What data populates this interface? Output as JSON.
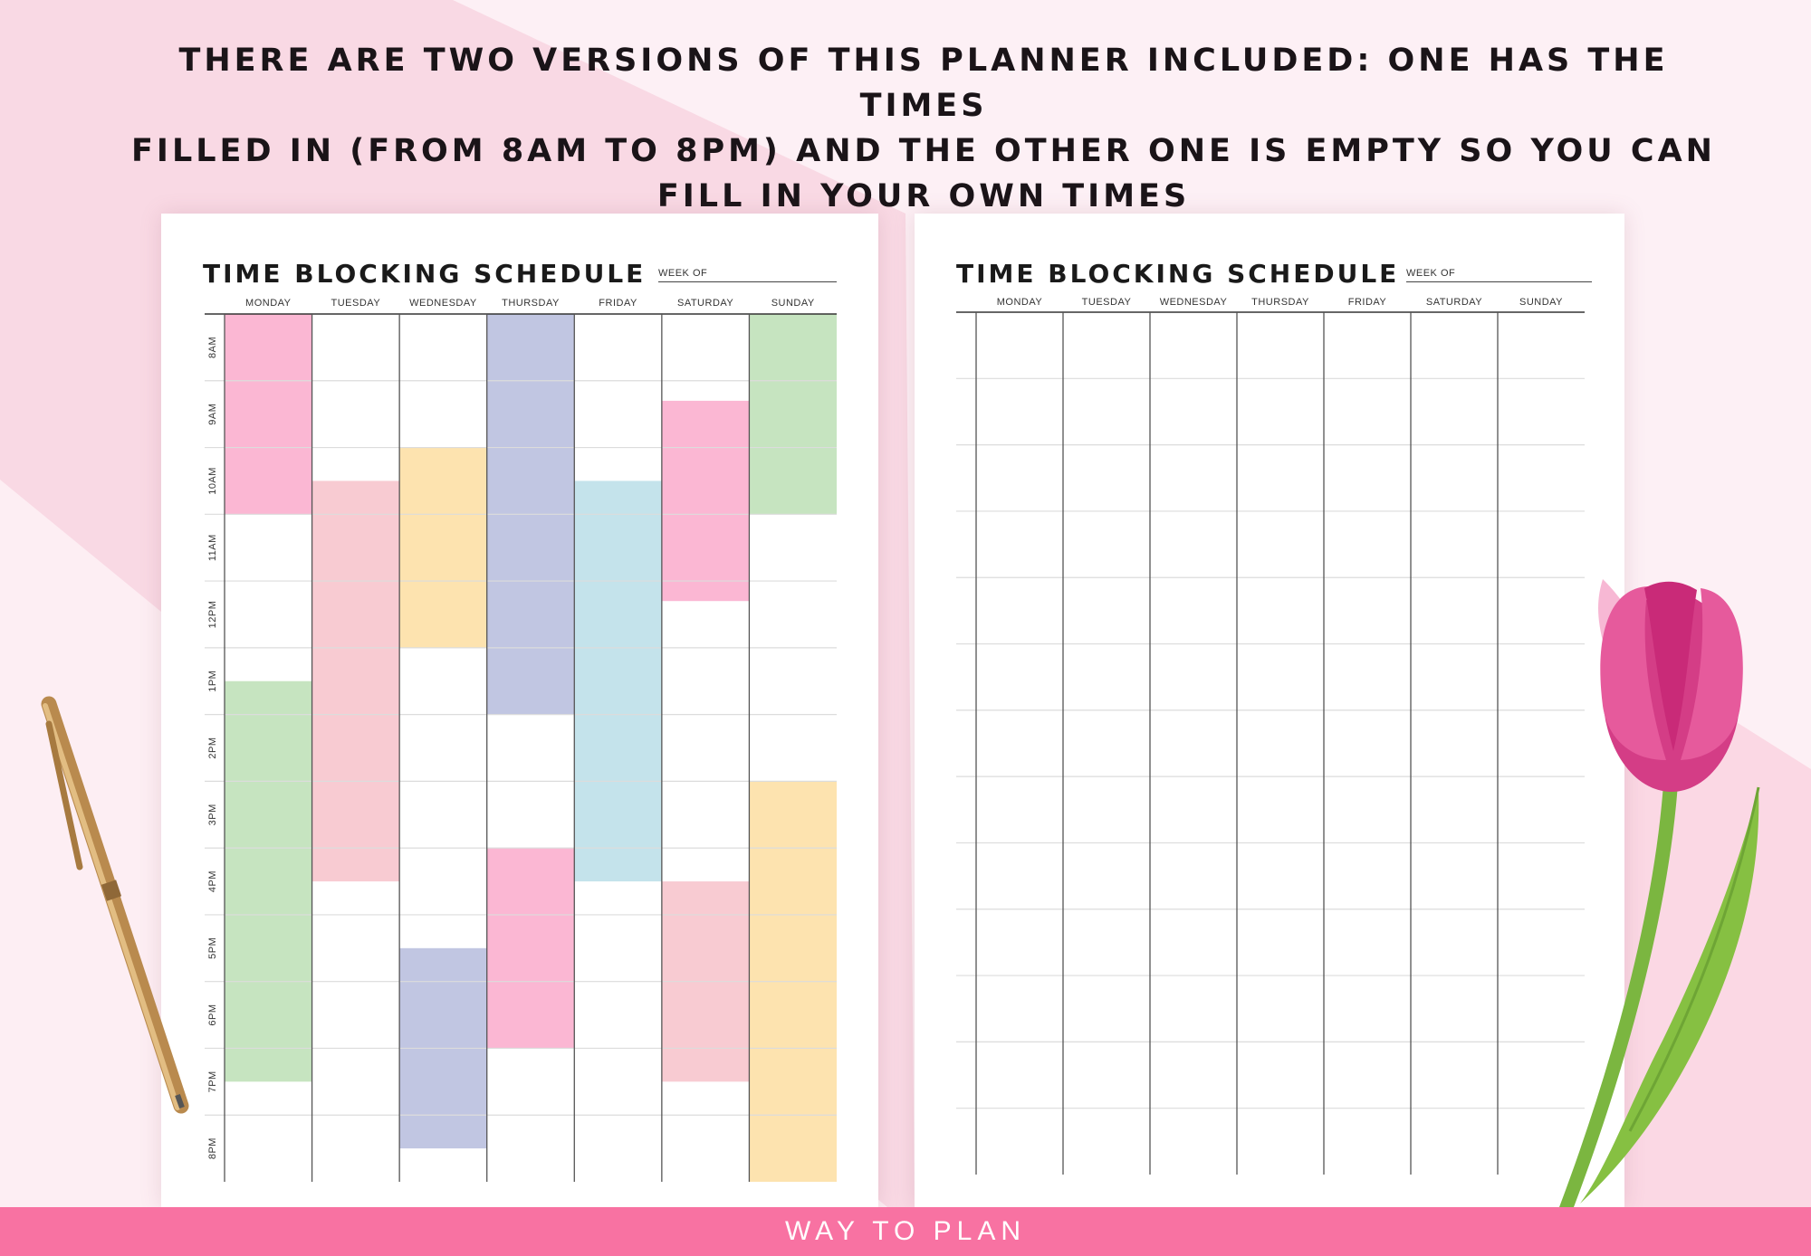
{
  "headline": {
    "line1": "THERE ARE TWO VERSIONS OF THIS PLANNER INCLUDED: ONE HAS THE TIMES",
    "line2": "FILLED IN (FROM 8AM TO 8PM) AND THE OTHER ONE IS EMPTY SO YOU CAN",
    "line3": "FILL IN YOUR OWN TIMES"
  },
  "planner_title": "TIME BLOCKING SCHEDULE",
  "week_of_label": "WEEK OF",
  "days": [
    "MONDAY",
    "TUESDAY",
    "WEDNESDAY",
    "THURSDAY",
    "FRIDAY",
    "SATURDAY",
    "SUNDAY"
  ],
  "times": [
    "8AM",
    "9AM",
    "10AM",
    "11AM",
    "12PM",
    "1PM",
    "2PM",
    "3PM",
    "4PM",
    "5PM",
    "6PM",
    "7PM",
    "8PM"
  ],
  "colors": {
    "pink": "#fbb7d3",
    "blush": "#f8cbd2",
    "peach": "#fde3af",
    "lavender": "#c1c6e2",
    "sky": "#c4e3eb",
    "green": "#c6e4c0",
    "footer": "#f872a2"
  },
  "time_blocks": [
    {
      "day": "MONDAY",
      "start": 8,
      "end": 11,
      "color": "pink"
    },
    {
      "day": "MONDAY",
      "start": 13.5,
      "end": 19.5,
      "color": "green"
    },
    {
      "day": "TUESDAY",
      "start": 10.5,
      "end": 16.5,
      "color": "blush"
    },
    {
      "day": "WEDNESDAY",
      "start": 10,
      "end": 13,
      "color": "peach"
    },
    {
      "day": "WEDNESDAY",
      "start": 17.5,
      "end": 20.5,
      "color": "lavender"
    },
    {
      "day": "THURSDAY",
      "start": 8,
      "end": 14,
      "color": "lavender"
    },
    {
      "day": "THURSDAY",
      "start": 16,
      "end": 19,
      "color": "pink"
    },
    {
      "day": "FRIDAY",
      "start": 10.5,
      "end": 16.5,
      "color": "sky"
    },
    {
      "day": "SATURDAY",
      "start": 9.3,
      "end": 12.3,
      "color": "pink"
    },
    {
      "day": "SATURDAY",
      "start": 16.5,
      "end": 19.5,
      "color": "blush"
    },
    {
      "day": "SUNDAY",
      "start": 8,
      "end": 11,
      "color": "green"
    },
    {
      "day": "SUNDAY",
      "start": 15,
      "end": 21,
      "color": "peach"
    }
  ],
  "empty_version_rows": 13,
  "footer_text": "WAY TO PLAN",
  "decorations": [
    "pen",
    "pink-tulip"
  ]
}
